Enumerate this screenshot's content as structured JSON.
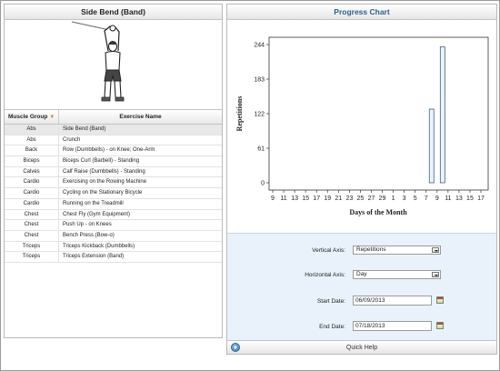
{
  "exercise_panel": {
    "title": "Side Bend (Band)",
    "columns": {
      "group": "Muscle Group",
      "name": "Exercise Name"
    },
    "rows": [
      {
        "group": "Abs",
        "name": "Side Bend (Band)",
        "selected": true
      },
      {
        "group": "Abs",
        "name": "Crunch"
      },
      {
        "group": "Back",
        "name": "Row (Dumbbells) - on Knee; One-Arm"
      },
      {
        "group": "Biceps",
        "name": "Biceps Curl (Barbell) - Standing"
      },
      {
        "group": "Calves",
        "name": "Calf Raise (Dumbbells) - Standing"
      },
      {
        "group": "Cardio",
        "name": "Exercising on the Rowing Machine"
      },
      {
        "group": "Cardio",
        "name": "Cycling on the Stationary Bicycle"
      },
      {
        "group": "Cardio",
        "name": "Running on the Treadmill"
      },
      {
        "group": "Chest",
        "name": "Chest Fly (Gym Equipment)"
      },
      {
        "group": "Chest",
        "name": "Push Up - on Knees"
      },
      {
        "group": "Chest",
        "name": "Bench Press (Bow-o)"
      },
      {
        "group": "Triceps",
        "name": "Triceps Kickback (Dumbbells)"
      },
      {
        "group": "Triceps",
        "name": "Triceps Extension (Band)"
      }
    ]
  },
  "progress_panel": {
    "title": "Progress Chart"
  },
  "chart_data": {
    "type": "bar",
    "title": "",
    "xlabel": "Days of the Month",
    "ylabel": "Repetitions",
    "ylim": [
      0,
      244
    ],
    "yticks": [
      0,
      61,
      122,
      183,
      244
    ],
    "xticks": [
      "9",
      "11",
      "13",
      "15",
      "17",
      "19",
      "21",
      "23",
      "25",
      "27",
      "29",
      "1",
      "3",
      "5",
      "7",
      "9",
      "11",
      "13",
      "15",
      "17"
    ],
    "grid": false,
    "legend": "none",
    "bars": [
      {
        "category": "8",
        "value": 130
      },
      {
        "category": "10",
        "value": 240
      }
    ],
    "bar_color": "#eef3fa",
    "bar_edge_color": "#3f5f8a"
  },
  "controls": {
    "vertical_axis": {
      "label": "Vertical Axis:",
      "value": "Repetitions"
    },
    "horizontal_axis": {
      "label": "Horizontal Axis:",
      "value": "Day"
    },
    "start_date": {
      "label": "Start Date:",
      "value": "06/09/2013"
    },
    "end_date": {
      "label": "End Date:",
      "value": "07/18/2013"
    }
  },
  "quick_help": {
    "label": "Quick Help"
  }
}
